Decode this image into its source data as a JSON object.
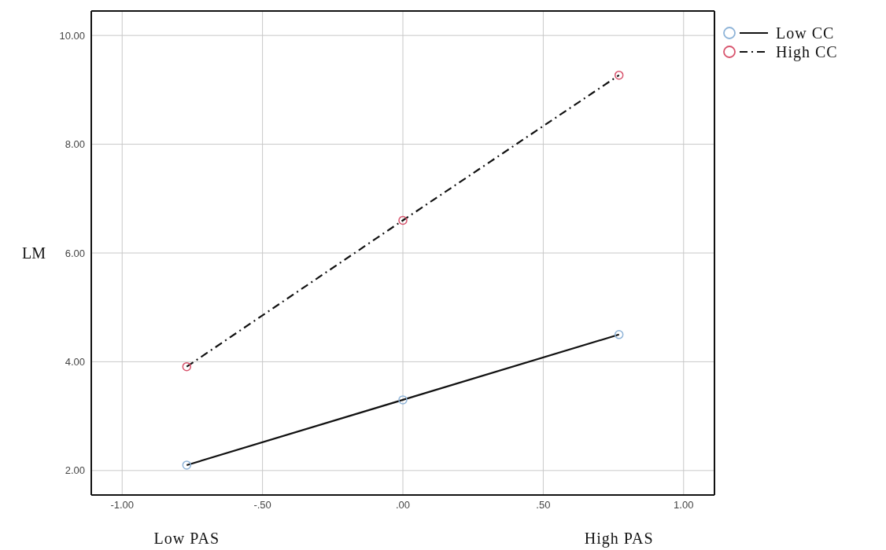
{
  "chart_data": {
    "type": "line",
    "ylabel": "LM",
    "annotations": [
      "Low PAS",
      "High PAS"
    ],
    "xlim": [
      -1.11,
      1.11
    ],
    "xticks": [
      {
        "value": -1,
        "label": "-1.00"
      },
      {
        "value": -0.5,
        "label": "-.50"
      },
      {
        "value": 0,
        "label": ".00"
      },
      {
        "value": 0.5,
        "label": ".50"
      },
      {
        "value": 1,
        "label": "1.00"
      }
    ],
    "ylim": [
      1.55,
      10.45
    ],
    "yticks": [
      {
        "value": 2,
        "label": "2.00"
      },
      {
        "value": 4,
        "label": "4.00"
      },
      {
        "value": 6,
        "label": "6.00"
      },
      {
        "value": 8,
        "label": "8.00"
      },
      {
        "value": 10,
        "label": "10.00"
      }
    ],
    "x": [
      -0.77,
      0,
      0.77
    ],
    "series": [
      {
        "name": "Low CC",
        "color": "#8fb4d8",
        "values": [
          2.1,
          3.3,
          4.5
        ],
        "line_style": "solid"
      },
      {
        "name": "High CC",
        "color": "#d8556e",
        "values": [
          3.91,
          6.6,
          9.27
        ],
        "line_style": "dashdot"
      }
    ],
    "grid": true,
    "legend": "top right",
    "marker": "circle"
  }
}
